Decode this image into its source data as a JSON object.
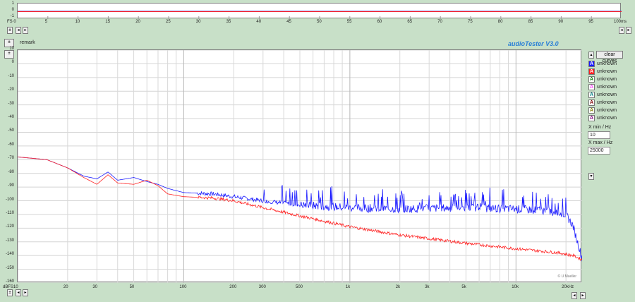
{
  "app": {
    "title": "audioTester  V3.0",
    "remark_label": "remark",
    "copyright": "© U.Mueller"
  },
  "time_plot": {
    "y_ticks": [
      "1",
      "0",
      "-1"
    ],
    "x_ticks": [
      "FS 0",
      "5",
      "10",
      "15",
      "20",
      "25",
      "30",
      "35",
      "40",
      "45",
      "50",
      "55",
      "60",
      "65",
      "70",
      "75",
      "80",
      "85",
      "90",
      "95",
      "100ms"
    ]
  },
  "freq_plot": {
    "y_ticks": [
      "10",
      "0",
      "-10",
      "-20",
      "-30",
      "-40",
      "-50",
      "-60",
      "-70",
      "-80",
      "-90",
      "-100",
      "-110",
      "-120",
      "-130",
      "-140",
      "-150",
      "-160"
    ],
    "x_ticks": [
      {
        "label": "dBFS10",
        "f": 10
      },
      {
        "label": "20",
        "f": 20
      },
      {
        "label": "30",
        "f": 30
      },
      {
        "label": "50",
        "f": 50
      },
      {
        "label": "100",
        "f": 100
      },
      {
        "label": "200",
        "f": 200
      },
      {
        "label": "300",
        "f": 300
      },
      {
        "label": "500",
        "f": 500
      },
      {
        "label": "1k",
        "f": 1000
      },
      {
        "label": "2k",
        "f": 2000
      },
      {
        "label": "3k",
        "f": 3000
      },
      {
        "label": "5k",
        "f": 5000
      },
      {
        "label": "10k",
        "f": 10000
      },
      {
        "label": "20kHz",
        "f": 20000
      }
    ]
  },
  "side_panel": {
    "clear_label": "clear curves",
    "legend": [
      {
        "label": "unknown",
        "color": "#1a1aff",
        "checked": true
      },
      {
        "label": "unknown",
        "color": "#ff2020",
        "checked": true
      },
      {
        "label": "unknown",
        "color": "#008000",
        "checked": false
      },
      {
        "label": "unknown",
        "color": "#ff40ff",
        "checked": false
      },
      {
        "label": "unknown",
        "color": "#008080",
        "checked": false
      },
      {
        "label": "unknown",
        "color": "#800000",
        "checked": false
      },
      {
        "label": "unknown",
        "color": "#808000",
        "checked": false
      },
      {
        "label": "unknown",
        "color": "#800080",
        "checked": false
      }
    ],
    "xmin_label": "X min / Hz",
    "xmin_value": "10",
    "xmax_label": "X max / Hz",
    "xmax_value": "25000"
  },
  "chart_data": {
    "type": "line",
    "xscale": "log",
    "xlim": [
      10,
      25000
    ],
    "ylim": [
      -160,
      10
    ],
    "grid": true,
    "series": [
      {
        "color": "#1a1aff",
        "x": [
          10,
          15,
          20,
          25,
          30,
          35,
          40,
          50,
          60,
          70,
          80,
          100,
          150,
          200,
          300,
          500,
          1000,
          2000,
          5000,
          10000,
          15000,
          18000,
          20000,
          22000,
          25000
        ],
        "y": [
          -68,
          -70,
          -76,
          -82,
          -84,
          -79,
          -85,
          -83,
          -86,
          -88,
          -91,
          -94,
          -95,
          -97,
          -100,
          -103,
          -105,
          -106,
          -105,
          -106,
          -107,
          -109,
          -110,
          -118,
          -142
        ]
      },
      {
        "color": "#ff2020",
        "x": [
          10,
          15,
          20,
          25,
          30,
          35,
          40,
          50,
          60,
          70,
          80,
          100,
          150,
          200,
          300,
          500,
          1000,
          2000,
          5000,
          10000,
          15000,
          18000,
          20000,
          22000,
          25000
        ],
        "y": [
          -68,
          -70,
          -76,
          -83,
          -88,
          -81,
          -87,
          -88,
          -85,
          -89,
          -95,
          -97,
          -98,
          -100,
          -105,
          -111,
          -119,
          -125,
          -131,
          -135,
          -137,
          -138,
          -139,
          -140,
          -143
        ]
      }
    ]
  }
}
